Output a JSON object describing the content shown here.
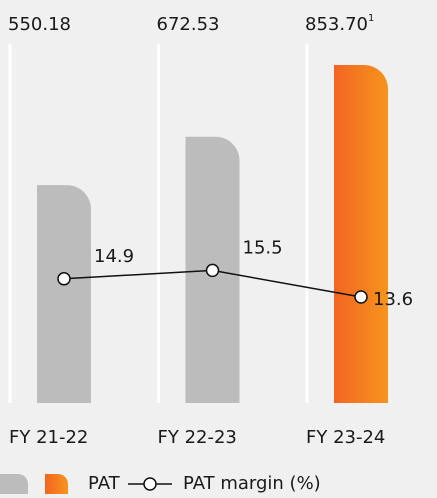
{
  "chart_data": {
    "type": "bar",
    "categories": [
      "FY 21-22",
      "FY 22-23",
      "FY 23-24"
    ],
    "series": [
      {
        "name": "PAT",
        "values": [
          550.18,
          672.53,
          853.7
        ],
        "value_labels": [
          "550.18",
          "672.53",
          "853.70"
        ],
        "value_label_footnotes": [
          null,
          null,
          "1"
        ],
        "colors": [
          "#bcbcbc",
          "#bcbcbc",
          "#f47a20"
        ]
      },
      {
        "name": "PAT margin (%)",
        "type": "line",
        "color": "#111111",
        "values": [
          14.9,
          15.5,
          13.6
        ]
      }
    ]
  }
}
